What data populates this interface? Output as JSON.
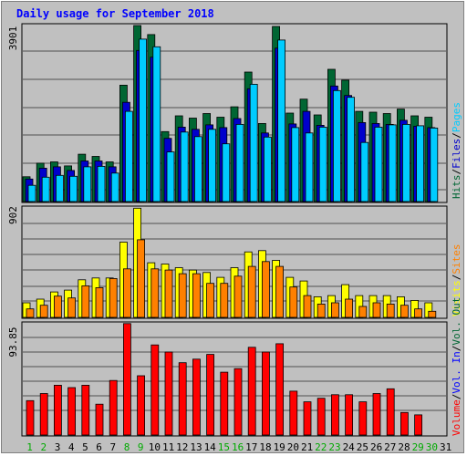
{
  "title": "Daily usage for September 2018",
  "colors": {
    "hits": "#006633",
    "files": "#0000cc",
    "pages": "#00ccff",
    "visits": "#ffff00",
    "sites": "#ff8000",
    "volume": "#ff0000",
    "vol_in": "#0000ff",
    "vol_out": "#006633",
    "background": "#c0c0c0",
    "day_weekday": "#000000",
    "day_weekend": "#00aa00"
  },
  "days": [
    "1",
    "2",
    "3",
    "4",
    "5",
    "6",
    "7",
    "8",
    "9",
    "10",
    "11",
    "12",
    "13",
    "14",
    "15",
    "16",
    "17",
    "18",
    "19",
    "20",
    "21",
    "22",
    "23",
    "24",
    "25",
    "26",
    "27",
    "28",
    "29",
    "30",
    "31"
  ],
  "weekend_days": [
    1,
    2,
    8,
    9,
    15,
    16,
    22,
    23,
    29,
    30
  ],
  "chart_data": {
    "type": "bar",
    "title": "Daily usage for September 2018",
    "categories": [
      "1",
      "2",
      "3",
      "4",
      "5",
      "6",
      "7",
      "8",
      "9",
      "10",
      "11",
      "12",
      "13",
      "14",
      "15",
      "16",
      "17",
      "18",
      "19",
      "20",
      "21",
      "22",
      "23",
      "24",
      "25",
      "26",
      "27",
      "28",
      "29",
      "30",
      "31"
    ],
    "panels": [
      {
        "name": "top",
        "max_label": "3901",
        "ylim": [
          0,
          3901
        ],
        "legend": [
          "Hits",
          "Files",
          "Pages"
        ],
        "series": [
          {
            "name": "Hits",
            "values": [
              550,
              850,
              880,
              790,
              1050,
              1000,
              880,
              2580,
              3900,
              3700,
              1550,
              1900,
              1850,
              1950,
              1870,
              2100,
              2870,
              1730,
              3880,
              1960,
              2270,
              1920,
              2930,
              2690,
              2000,
              1980,
              1950,
              2050,
              1900,
              1870,
              0
            ]
          },
          {
            "name": "Files",
            "values": [
              500,
              740,
              770,
              690,
              900,
              900,
              770,
              2200,
              3350,
              3200,
              1400,
              1650,
              1600,
              1700,
              1640,
              1840,
              2500,
              1520,
              3400,
              1720,
              2000,
              1690,
              2560,
              2350,
              1750,
              1730,
              1710,
              1800,
              1670,
              1640,
              0
            ]
          },
          {
            "name": "Pages",
            "values": [
              360,
              540,
              580,
              560,
              770,
              780,
              630,
              2000,
              3600,
              3430,
              1100,
              1540,
              1440,
              1600,
              1280,
              1710,
              2600,
              1430,
              3580,
              1640,
              1520,
              1650,
              2460,
              2310,
              1310,
              1650,
              1700,
              1710,
              1680,
              1630,
              0
            ]
          }
        ]
      },
      {
        "name": "middle",
        "max_label": "902",
        "ylim": [
          0,
          902
        ],
        "legend": [
          "Visits",
          "Sites"
        ],
        "series": [
          {
            "name": "Visits",
            "values": [
              120,
              150,
              210,
              225,
              310,
              325,
              325,
              620,
              900,
              450,
              440,
              410,
              390,
              370,
              330,
              410,
              540,
              550,
              470,
              330,
              300,
              170,
              180,
              270,
              180,
              180,
              180,
              170,
              140,
              120,
              0
            ]
          },
          {
            "name": "Sites",
            "values": [
              70,
              100,
              175,
              160,
              260,
              245,
              320,
              400,
              640,
              400,
              390,
              360,
              360,
              280,
              280,
              340,
              420,
              460,
              420,
              250,
              180,
              110,
              120,
              150,
              90,
              120,
              110,
              100,
              70,
              50,
              0
            ]
          }
        ]
      },
      {
        "name": "bottom",
        "max_label": "93.85",
        "ylim": [
          0,
          93.85
        ],
        "legend": [
          "Volume",
          "Vol. In",
          "Vol. Out"
        ],
        "series": [
          {
            "name": "Volume",
            "values": [
              29,
              35,
              42,
              40,
              42,
              26,
              46,
              94,
              50,
              76,
              70,
              61,
              64,
              68,
              53,
              56,
              74,
              70,
              77,
              37,
              28,
              31,
              34,
              34,
              28,
              35,
              39,
              19,
              17,
              0,
              0
            ]
          }
        ]
      }
    ]
  }
}
